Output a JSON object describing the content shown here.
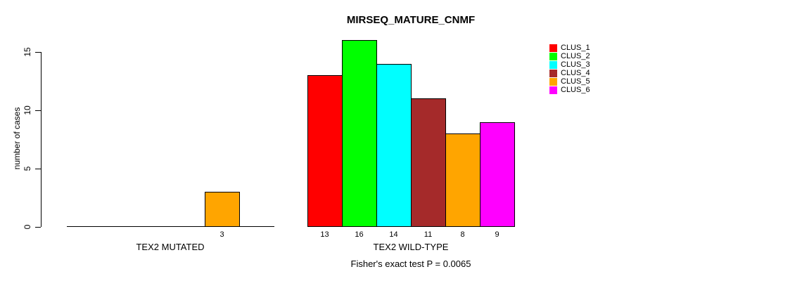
{
  "title": "MIRSEQ_MATURE_CNMF",
  "chart_data": {
    "type": "bar",
    "title": "MIRSEQ_MATURE_CNMF",
    "xlabel": "",
    "ylabel": "number of cases",
    "ylim": [
      0,
      16
    ],
    "yticks": [
      0,
      5,
      10,
      15
    ],
    "grid": false,
    "legend_position": "top-right-outside",
    "categories": [
      "TEX2 MUTATED",
      "TEX2 WILD-TYPE"
    ],
    "series": [
      {
        "name": "CLUS_1",
        "color": "#FF0000",
        "values": [
          0,
          13
        ]
      },
      {
        "name": "CLUS_2",
        "color": "#00FF00",
        "values": [
          0,
          16
        ]
      },
      {
        "name": "CLUS_3",
        "color": "#00FFFF",
        "values": [
          0,
          14
        ]
      },
      {
        "name": "CLUS_4",
        "color": "#A52A2A",
        "values": [
          0,
          11
        ]
      },
      {
        "name": "CLUS_5",
        "color": "#FFA500",
        "values": [
          3,
          8
        ]
      },
      {
        "name": "CLUS_6",
        "color": "#FF00FF",
        "values": [
          0,
          9
        ]
      }
    ],
    "bar_value_labels_shown_for_nonzero_only": true,
    "annotation": "Fisher's exact test P = 0.0065"
  },
  "colors": {
    "background": "#FFFFFF",
    "axis": "#000000",
    "bar_border": "#000000",
    "text": "#000000"
  }
}
